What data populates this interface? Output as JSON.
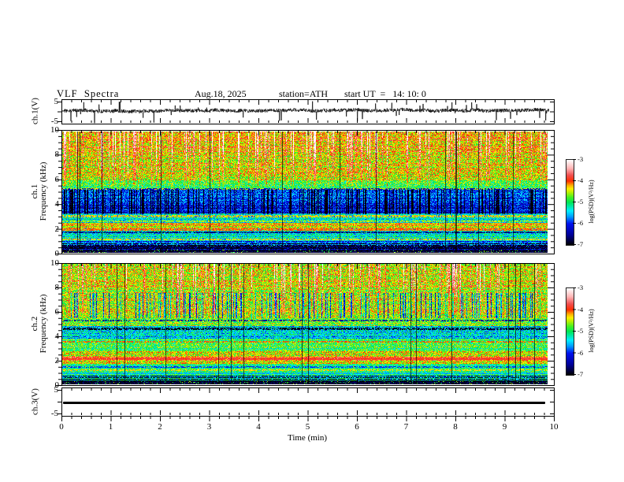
{
  "header": {
    "title": "VLF  Spectra",
    "date": "Aug.18, 2025",
    "station": "station=ATH",
    "start_ut": "start UT  =   14: 10: 0"
  },
  "panels": {
    "wave1": {
      "label": "ch.1(V)",
      "tick_labels": [
        "5",
        "-5"
      ],
      "tick_values": [
        5,
        -5
      ]
    },
    "spec1": {
      "line1": "ch.1",
      "line2": "Frequency (kHz)",
      "tick_labels": [
        "10",
        "8",
        "6",
        "4",
        "2",
        "0"
      ],
      "tick_values": [
        10,
        8,
        6,
        4,
        2,
        0
      ]
    },
    "spec2": {
      "line1": "ch.2",
      "line2": "Frequency (kHz)",
      "tick_labels": [
        "10",
        "8",
        "6",
        "4",
        "2",
        "0"
      ],
      "tick_values": [
        10,
        8,
        6,
        4,
        2,
        0
      ]
    },
    "wave3": {
      "label": "ch.3(V)",
      "tick_labels": [
        "5",
        "-5"
      ],
      "tick_values": [
        5,
        -5
      ]
    }
  },
  "xaxis": {
    "label": "Time  (min)",
    "tick_labels": [
      "0",
      "1",
      "2",
      "3",
      "4",
      "5",
      "6",
      "7",
      "8",
      "9",
      "10"
    ],
    "tick_values": [
      0,
      1,
      2,
      3,
      4,
      5,
      6,
      7,
      8,
      9,
      10
    ],
    "minor_step_min": 0.2,
    "range_min": [
      0,
      10
    ]
  },
  "colorbar": {
    "label": "log(PSD)(V²/Hz)",
    "tick_labels": [
      "-3",
      "-4",
      "-5",
      "-6",
      "-7"
    ],
    "tick_values": [
      -3,
      -4,
      -5,
      -6,
      -7
    ],
    "range": [
      -7,
      -3
    ],
    "stops": [
      {
        "t": 0.0,
        "color": "#000000"
      },
      {
        "t": 0.12,
        "color": "#000099"
      },
      {
        "t": 0.25,
        "color": "#0011ee"
      },
      {
        "t": 0.33,
        "color": "#0099ff"
      },
      {
        "t": 0.4,
        "color": "#00eeff"
      },
      {
        "t": 0.5,
        "color": "#00e655"
      },
      {
        "t": 0.56,
        "color": "#44f022"
      },
      {
        "t": 0.62,
        "color": "#baf000"
      },
      {
        "t": 0.66,
        "color": "#ffee00"
      },
      {
        "t": 0.7,
        "color": "#ffae00"
      },
      {
        "t": 0.75,
        "color": "#ff2e00"
      },
      {
        "t": 0.82,
        "color": "#f05050"
      },
      {
        "t": 0.9,
        "color": "#ffb4b4"
      },
      {
        "t": 1.0,
        "color": "#ffffff"
      }
    ]
  },
  "chart_data": [
    {
      "name": "ch1-waveform",
      "type": "line",
      "ylabel": "ch.1(V)",
      "ylim": [
        -5,
        5
      ],
      "xlim_min": [
        0,
        10
      ],
      "description": "broadband noisy VLF time series, mean about +0.4 V, rms about 0.8 V, frequent impulsive spikes to +/-5 V",
      "mean_v": 0.4,
      "noise_v": 0.8,
      "spike_prob": 0.055,
      "spike_v": [
        1.5,
        5.2
      ],
      "seed": 11
    },
    {
      "name": "ch1-spectrogram",
      "type": "heatmap",
      "ylabel": "ch.1 Frequency (kHz)",
      "ylim_khz": [
        0,
        10
      ],
      "xlim_min": [
        0,
        10
      ],
      "zlabel": "log(PSD)(V²/Hz)",
      "zlim": [
        -7,
        -3
      ],
      "seed": 21,
      "bands": [
        {
          "f0": 8.3,
          "f1": 10.0,
          "psd": -4.25
        },
        {
          "f0": 6.0,
          "f1": 8.3,
          "psd": -4.45
        },
        {
          "f0": 5.2,
          "f1": 6.0,
          "psd": -4.8
        },
        {
          "f0": 4.0,
          "f1": 5.2,
          "psd": -5.9
        },
        {
          "f0": 3.3,
          "f1": 4.0,
          "psd": -6.15
        },
        {
          "f0": 2.5,
          "f1": 3.3,
          "psd": -5.35
        },
        {
          "f0": 2.05,
          "f1": 2.5,
          "psd": -4.35
        },
        {
          "f0": 1.0,
          "f1": 2.05,
          "psd": -5.3
        },
        {
          "f0": 0.55,
          "f1": 1.0,
          "psd": -5.95
        },
        {
          "f0": 0.0,
          "f1": 0.55,
          "psd": -6.7
        }
      ],
      "lines": [
        {
          "f": 5.3,
          "psd": -6.3,
          "gap": 0.55
        },
        {
          "f": 3.05,
          "psd": -4.3,
          "gap": 0.35
        },
        {
          "f": 2.62,
          "psd": -4.5,
          "gap": 0.4
        },
        {
          "f": 1.95,
          "psd": -4.1,
          "gap": 0.15
        },
        {
          "f": 1.7,
          "psd": -6.6,
          "gap": 0.3
        },
        {
          "f": 1.15,
          "psd": -4.35,
          "gap": 0.35
        },
        {
          "f": 0.55,
          "psd": -6.9,
          "gap": 0.15
        }
      ],
      "streaks": {
        "red_prob": 0.2,
        "red_fmin": 5.5,
        "dark_prob": 0.3,
        "dark_f0": 3.2,
        "dark_f1": 5.3,
        "grey_prob": 0.018
      },
      "stripe_below_khz": 0.9,
      "black_below_khz": 0.32
    },
    {
      "name": "ch2-spectrogram",
      "type": "heatmap",
      "ylabel": "ch.2 Frequency (kHz)",
      "ylim_khz": [
        0,
        10
      ],
      "xlim_min": [
        0,
        10
      ],
      "zlabel": "log(PSD)(V²/Hz)",
      "zlim": [
        -7,
        -3
      ],
      "seed": 33,
      "bands": [
        {
          "f0": 8.0,
          "f1": 10.0,
          "psd": -4.45
        },
        {
          "f0": 5.6,
          "f1": 8.0,
          "psd": -4.55
        },
        {
          "f0": 4.9,
          "f1": 5.6,
          "psd": -4.7
        },
        {
          "f0": 3.8,
          "f1": 4.9,
          "psd": -5.45
        },
        {
          "f0": 2.8,
          "f1": 3.8,
          "psd": -4.9
        },
        {
          "f0": 2.35,
          "f1": 2.8,
          "psd": -4.5
        },
        {
          "f0": 2.0,
          "f1": 2.35,
          "psd": -4.0
        },
        {
          "f0": 1.75,
          "f1": 2.0,
          "psd": -4.45
        },
        {
          "f0": 0.8,
          "f1": 1.75,
          "psd": -5.05
        },
        {
          "f0": 0.35,
          "f1": 0.8,
          "psd": -5.6
        },
        {
          "f0": 0.0,
          "f1": 0.35,
          "psd": -6.8
        }
      ],
      "lines": [
        {
          "f": 5.3,
          "psd": -6.5,
          "gap": 0.5
        },
        {
          "f": 4.65,
          "psd": -6.9,
          "gap": 0.35,
          "th": 0.12
        },
        {
          "f": 3.55,
          "psd": -4.0,
          "gap": 0.5
        },
        {
          "f": 2.15,
          "psd": -3.85,
          "gap": 0.1,
          "th": 0.1
        },
        {
          "f": 1.45,
          "psd": -5.9,
          "gap": 0.4
        },
        {
          "f": 1.2,
          "psd": -4.3,
          "gap": 0.4
        },
        {
          "f": 0.95,
          "psd": -5.6,
          "gap": 0.3
        }
      ],
      "streaks": {
        "red_prob": 0.17,
        "red_fmin": 5.8,
        "dark_prob": 0.22,
        "dark_f0": 5.5,
        "dark_f1": 7.6,
        "grey_prob": 0.018
      },
      "stripe_below_khz": 0.8,
      "black_below_khz": 0.3
    },
    {
      "name": "ch3-waveform",
      "type": "line",
      "ylabel": "ch.3(V)",
      "ylim": [
        -5,
        5
      ],
      "xlim_min": [
        0,
        10
      ],
      "description": "flat constant trace (no signal), thick black line near 0 V",
      "constant_v": -0.3
    }
  ]
}
